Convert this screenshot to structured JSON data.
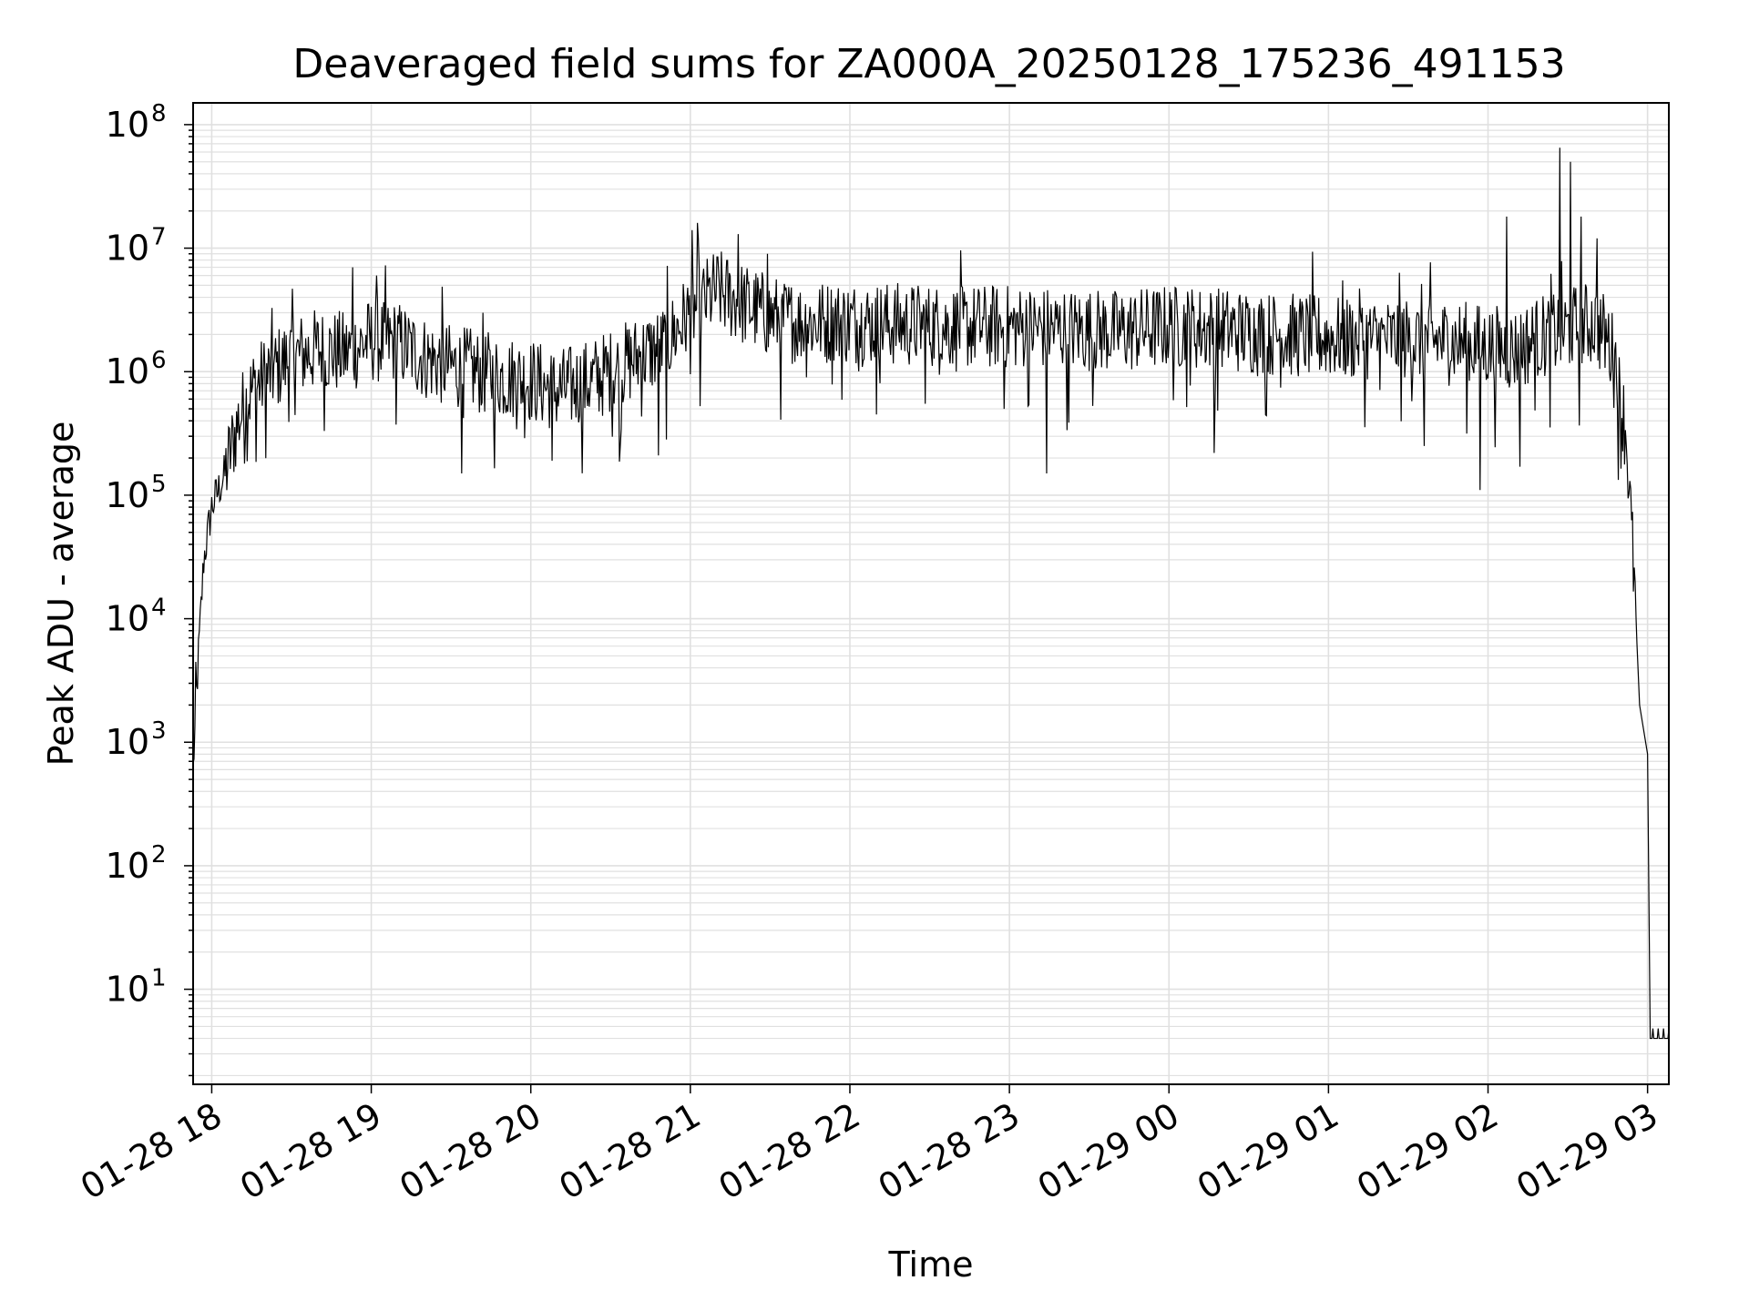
{
  "chart_data": {
    "type": "line",
    "title": "Deaveraged field sums for ZA000A_20250128_175236_491153",
    "xlabel": "Time",
    "ylabel": "Peak ADU - average",
    "x_scale": "time",
    "y_scale": "log",
    "xlim": [
      "2025-01-28 17:53",
      "2025-01-29 03:08"
    ],
    "ylim": [
      1.7,
      150000000
    ],
    "x_ticks": [
      "01-28 18",
      "01-28 19",
      "01-28 20",
      "01-28 21",
      "01-28 22",
      "01-28 23",
      "01-29 00",
      "01-29 01",
      "01-29 02",
      "01-29 03"
    ],
    "y_ticks": [
      {
        "base": "10",
        "exp": "1",
        "value": 10
      },
      {
        "base": "10",
        "exp": "2",
        "value": 100
      },
      {
        "base": "10",
        "exp": "3",
        "value": 1000
      },
      {
        "base": "10",
        "exp": "4",
        "value": 10000
      },
      {
        "base": "10",
        "exp": "5",
        "value": 100000
      },
      {
        "base": "10",
        "exp": "6",
        "value": 1000000
      },
      {
        "base": "10",
        "exp": "7",
        "value": 10000000
      },
      {
        "base": "10",
        "exp": "8",
        "value": 100000000
      }
    ],
    "grid": true,
    "line_color": "#000000",
    "grid_color": "#e0e0e0",
    "series": [
      {
        "x": [
          "2025-01-28 17:53",
          "2025-01-28 17:55",
          "2025-01-28 17:57",
          "2025-01-28 18:00",
          "2025-01-28 18:05",
          "2025-01-28 18:10",
          "2025-01-28 18:15",
          "2025-01-28 18:20",
          "2025-01-28 18:30",
          "2025-01-28 18:40",
          "2025-01-28 18:50",
          "2025-01-28 19:00",
          "2025-01-28 19:10",
          "2025-01-28 19:20",
          "2025-01-28 19:30",
          "2025-01-28 19:40",
          "2025-01-28 19:50",
          "2025-01-28 20:00",
          "2025-01-28 20:10",
          "2025-01-28 20:20",
          "2025-01-28 20:30",
          "2025-01-28 20:40",
          "2025-01-28 20:50",
          "2025-01-28 21:00",
          "2025-01-28 21:10",
          "2025-01-28 21:20",
          "2025-01-28 21:30",
          "2025-01-28 21:40",
          "2025-01-28 22:00",
          "2025-01-28 22:20",
          "2025-01-28 22:40",
          "2025-01-28 23:00",
          "2025-01-28 23:20",
          "2025-01-28 23:40",
          "2025-01-29 00:00",
          "2025-01-29 00:20",
          "2025-01-29 00:40",
          "2025-01-29 01:00",
          "2025-01-29 01:20",
          "2025-01-29 01:40",
          "2025-01-29 02:00",
          "2025-01-29 02:10",
          "2025-01-29 02:20",
          "2025-01-29 02:30",
          "2025-01-29 02:40",
          "2025-01-29 02:45",
          "2025-01-29 02:48",
          "2025-01-29 02:52",
          "2025-01-29 02:55",
          "2025-01-29 02:57",
          "2025-01-29 03:00",
          "2025-01-29 03:01",
          "2025-01-29 03:03",
          "2025-01-29 03:08"
        ],
        "y": [
          600,
          5000,
          30000,
          80000,
          150000,
          400000,
          700000,
          900000,
          1300000,
          1500000,
          1400000,
          1800000,
          1700000,
          1300000,
          1100000,
          1000000,
          900000,
          850000,
          700000,
          800000,
          1000000,
          1300000,
          1600000,
          3000000,
          4500000,
          3500000,
          2800000,
          2500000,
          2500000,
          2400000,
          2300000,
          2300000,
          2200000,
          2100000,
          2300000,
          2200000,
          2000000,
          1900000,
          1800000,
          1800000,
          1600000,
          1500000,
          1900000,
          2200000,
          2500000,
          1800000,
          1200000,
          300000,
          20000,
          2000,
          800,
          4,
          4,
          4
        ]
      }
    ],
    "noise_spread_decades": 0.35,
    "spikes": [
      {
        "x": "2025-01-28 18:53",
        "y": 7000000
      },
      {
        "x": "2025-01-28 19:02",
        "y": 6000000
      },
      {
        "x": "2025-01-28 19:34",
        "y": 150000
      },
      {
        "x": "2025-01-28 20:08",
        "y": 190000
      },
      {
        "x": "2025-01-28 20:48",
        "y": 210000
      },
      {
        "x": "2025-01-28 21:03",
        "y": 12000000
      },
      {
        "x": "2025-01-28 21:18",
        "y": 13000000
      },
      {
        "x": "2025-01-28 21:29",
        "y": 9000000
      },
      {
        "x": "2025-01-28 22:10",
        "y": 450000
      },
      {
        "x": "2025-01-28 22:58",
        "y": 500000
      },
      {
        "x": "2025-01-28 23:14",
        "y": 150000
      },
      {
        "x": "2025-01-29 00:17",
        "y": 220000
      },
      {
        "x": "2025-01-29 01:36",
        "y": 250000
      },
      {
        "x": "2025-01-29 01:57",
        "y": 110000
      },
      {
        "x": "2025-01-29 02:07",
        "y": 18000000
      },
      {
        "x": "2025-01-29 02:12",
        "y": 170000
      },
      {
        "x": "2025-01-29 02:27",
        "y": 65000000
      },
      {
        "x": "2025-01-29 02:31",
        "y": 50000000
      },
      {
        "x": "2025-01-29 02:35",
        "y": 18000000
      },
      {
        "x": "2025-01-29 02:41",
        "y": 12000000
      }
    ]
  }
}
